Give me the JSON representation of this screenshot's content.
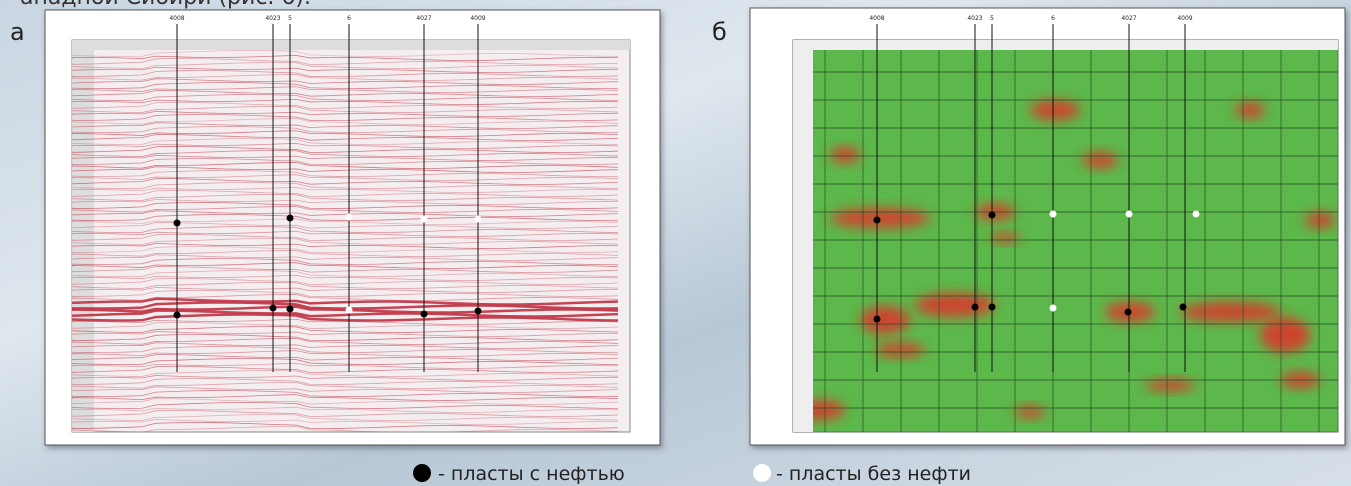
{
  "header_text": "ападной Сибири (рис. 6).",
  "panels": [
    {
      "label": "а",
      "wells": [
        "4008",
        "4023",
        "5",
        "6",
        "4027",
        "4009"
      ]
    },
    {
      "label": "б",
      "wells": [
        "4008",
        "4023",
        "5",
        "6",
        "4027",
        "4009"
      ]
    }
  ],
  "legend": [
    {
      "text": "- пласты с нефтью"
    },
    {
      "text": "- пласты без нефти"
    }
  ]
}
